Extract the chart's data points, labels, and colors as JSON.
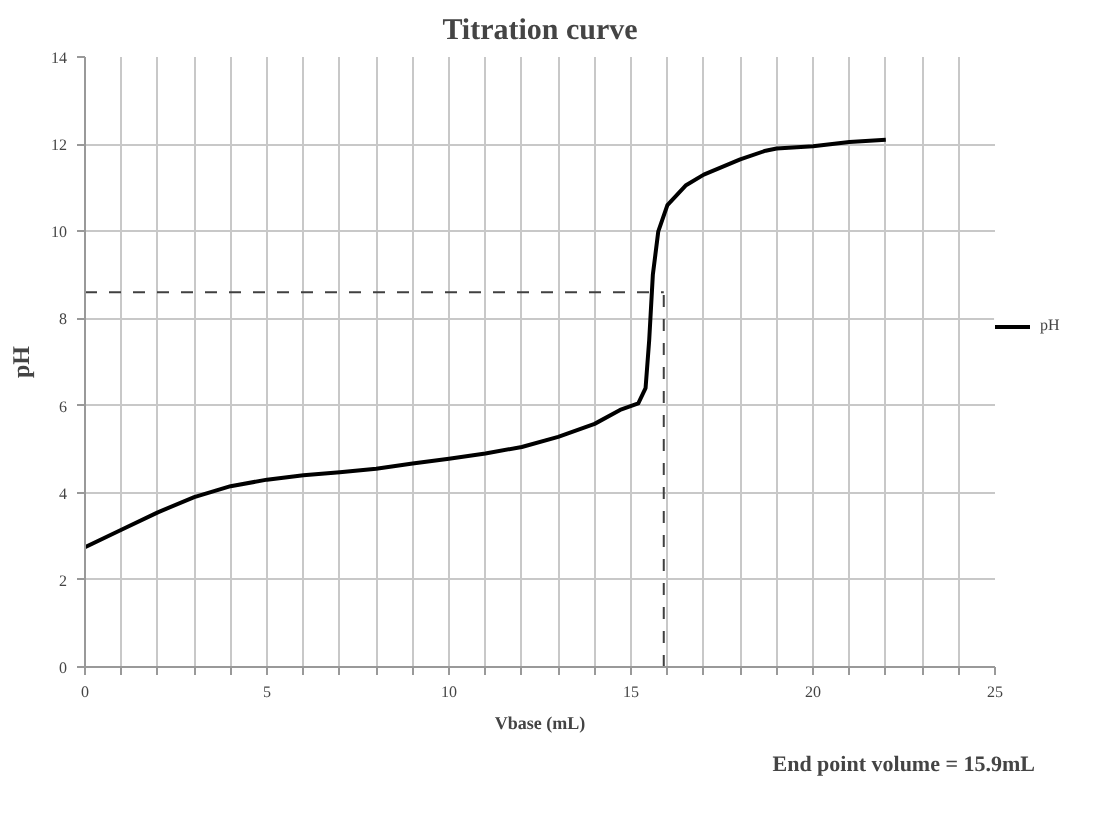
{
  "chart_data": {
    "type": "line",
    "title": "Titration curve",
    "xlabel": "Vbase (mL)",
    "ylabel": "pH",
    "x": [
      0,
      1,
      2,
      3,
      4,
      5,
      6,
      7,
      8,
      9,
      10,
      11,
      12,
      13,
      14,
      14.7,
      15.2,
      15.4,
      15.5,
      15.6,
      15.75,
      16,
      16.5,
      17,
      18,
      18.7,
      19,
      20,
      21,
      22
    ],
    "series": [
      {
        "name": "pH",
        "color": "#000000",
        "values": [
          2.75,
          3.15,
          3.55,
          3.9,
          4.15,
          4.3,
          4.4,
          4.47,
          4.55,
          4.67,
          4.78,
          4.9,
          5.05,
          5.28,
          5.58,
          5.9,
          6.05,
          6.4,
          7.5,
          9.0,
          10.0,
          10.6,
          11.05,
          11.3,
          11.65,
          11.85,
          11.9,
          11.95,
          12.05,
          12.1
        ]
      }
    ],
    "xlim": [
      0,
      25
    ],
    "ylim": [
      0,
      14
    ],
    "xticks": [
      0,
      {
        "value": 1,
        "label": null
      },
      {
        "value": 2,
        "label": null
      },
      {
        "value": 3,
        "label": null
      },
      {
        "value": 4,
        "label": null
      },
      5,
      {
        "value": 6,
        "label": null
      },
      {
        "value": 7,
        "label": null
      },
      {
        "value": 8,
        "label": null
      },
      {
        "value": 9,
        "label": null
      },
      10,
      {
        "value": 11,
        "label": null
      },
      {
        "value": 12,
        "label": null
      },
      {
        "value": 13,
        "label": null
      },
      {
        "value": 14,
        "label": null
      },
      15,
      {
        "value": 16,
        "label": null
      },
      {
        "value": 17,
        "label": null
      },
      {
        "value": 18,
        "label": null
      },
      {
        "value": 19,
        "label": null
      },
      20,
      {
        "value": 21,
        "label": null
      },
      {
        "value": 22,
        "label": null
      },
      {
        "value": 23,
        "label": null
      },
      {
        "value": 24,
        "label": null
      },
      25
    ],
    "yticks": [
      0,
      2,
      4,
      6,
      8,
      10,
      12,
      14
    ],
    "ref_lines": [
      {
        "axis": "y",
        "value": 8.6,
        "line_style": "dashed",
        "color": "#404040"
      },
      {
        "axis": "x",
        "value": 15.9,
        "label": "End point volume = 15.9mL",
        "line_style": "dashed",
        "color": "#404040"
      }
    ],
    "grid": true,
    "legend": "right",
    "marker": "none",
    "line_style": "solid"
  }
}
